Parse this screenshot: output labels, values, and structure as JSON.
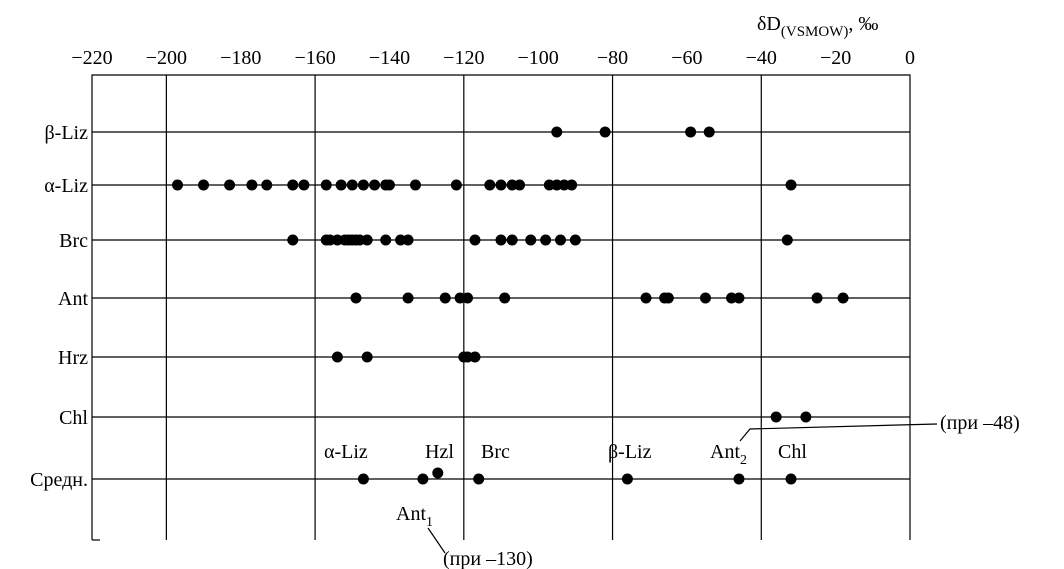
{
  "chart_data": {
    "type": "scatter",
    "xlabel": {
      "main": "δD",
      "sub": "(VSMOW)",
      "unit": ", ‰"
    },
    "xlim": [
      -220,
      0
    ],
    "xticks": [
      "−220",
      "−200",
      "−180",
      "−160",
      "−140",
      "−120",
      "−100",
      "−80",
      "−60",
      "−40",
      "−20",
      "0"
    ],
    "grid": true,
    "rows": [
      {
        "label": "β-Liz",
        "values": [
          -95,
          -82,
          -59,
          -54
        ]
      },
      {
        "label": "α-Liz",
        "values": [
          -197,
          -190,
          -183,
          -177,
          -173,
          -166,
          -163,
          -157,
          -153,
          -150,
          -147,
          -144,
          -141,
          -140,
          -133,
          -122,
          -113,
          -110,
          -107,
          -105,
          -97,
          -95,
          -93,
          -91,
          -32
        ]
      },
      {
        "label": "Brc",
        "values": [
          -166,
          -157,
          -156,
          -154,
          -152,
          -151,
          -150,
          -149,
          -148,
          -146,
          -141,
          -137,
          -135,
          -117,
          -110,
          -107,
          -102,
          -98,
          -94,
          -90,
          -33
        ]
      },
      {
        "label": "Ant",
        "values": [
          -149,
          -135,
          -125,
          -121,
          -119,
          -109,
          -71,
          -66,
          -65,
          -55,
          -48,
          -46,
          -25,
          -18
        ]
      },
      {
        "label": "Hrz",
        "values": [
          -154,
          -146,
          -120,
          -119,
          -117
        ]
      },
      {
        "label": "Chl",
        "values": [
          -36,
          -28
        ]
      },
      {
        "label": "Средн.",
        "values": [
          -147,
          -131,
          -116,
          -76,
          -46,
          -32
        ]
      }
    ],
    "average_extra_point": -127,
    "annotations": [
      {
        "text": "α-Liz",
        "sub": ""
      },
      {
        "text": "Hzl",
        "sub": ""
      },
      {
        "text": "Brc",
        "sub": ""
      },
      {
        "text": "β-Liz",
        "sub": ""
      },
      {
        "text": "Ant",
        "sub": "2"
      },
      {
        "text": "Chl",
        "sub": ""
      },
      {
        "text": "Ant",
        "sub": "1"
      }
    ],
    "callouts": [
      "(при –48)",
      "(при –130)"
    ]
  }
}
